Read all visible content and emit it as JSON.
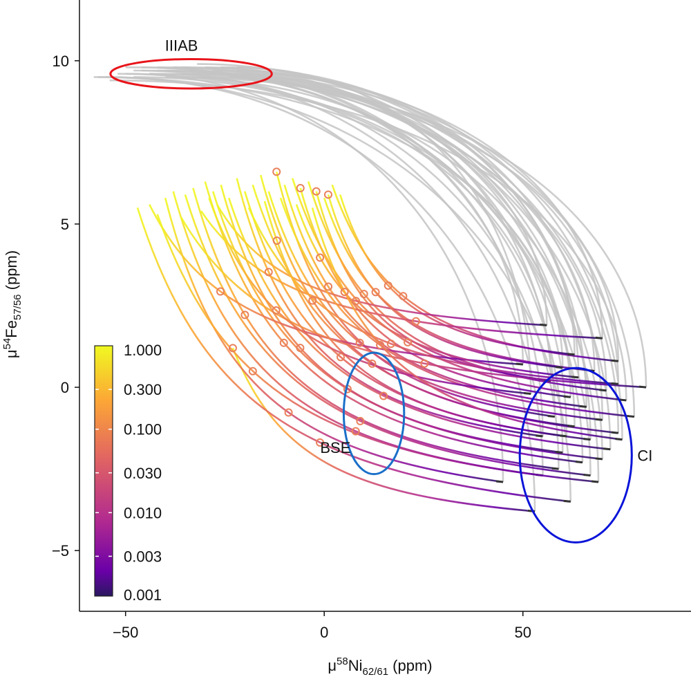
{
  "chart_data": {
    "type": "line",
    "xlabel": {
      "prefix": "μ",
      "sup": "58",
      "main": "Ni",
      "sub": "62/61",
      "suffix": " (ppm)"
    },
    "ylabel": {
      "prefix": "μ",
      "sup": "54",
      "main": "Fe",
      "sub": "57/56",
      "suffix": " (ppm)"
    },
    "xlim": [
      -61.6,
      92.3
    ],
    "ylim": [
      -6.86,
      11.86
    ],
    "xticks": [
      {
        "v": -50,
        "label": "−50"
      },
      {
        "v": 0,
        "label": "0"
      },
      {
        "v": 50,
        "label": "50"
      }
    ],
    "yticks": [
      {
        "v": -5,
        "label": "−5"
      },
      {
        "v": 0,
        "label": "0"
      },
      {
        "v": 5,
        "label": "5"
      },
      {
        "v": 10,
        "label": "10"
      }
    ],
    "grid": false,
    "grey_curve_color": "#c4c4c4",
    "colorbar": {
      "scale": "log",
      "range": [
        0.001,
        1
      ],
      "ticks": [
        {
          "v": 1,
          "label": "1.000"
        },
        {
          "v": 0.3,
          "label": "0.300"
        },
        {
          "v": 0.1,
          "label": "0.100"
        },
        {
          "v": 0.03,
          "label": "0.030"
        },
        {
          "v": 0.01,
          "label": "0.010"
        },
        {
          "v": 0.003,
          "label": "0.003"
        },
        {
          "v": 0.001,
          "label": "0.001"
        }
      ],
      "colormap": "plasma",
      "placement": "bottom-left"
    },
    "ellipses": [
      {
        "label": "IIIAB",
        "cx": -33.5,
        "cy": 9.6,
        "rx": 20.3,
        "ry": 0.45,
        "color": "#e8141a"
      },
      {
        "label": "BSE",
        "cx": 12.5,
        "cy": -0.8,
        "rx": 7.6,
        "ry": 1.86,
        "color": "#1a6fc9"
      },
      {
        "label": "CI",
        "cx": 63.3,
        "cy": -2.08,
        "rx": 14.1,
        "ry": 2.67,
        "color": "#0a14d8"
      }
    ],
    "curves_columns": [
      "end_x",
      "end_y",
      "colored_start_x",
      "colored_start_y",
      "grey_start_x",
      "grey_start_y",
      "marker_x"
    ],
    "curves": [
      [
        53,
        -3.8,
        -23,
        1.2,
        -55,
        9.5,
        -23
      ],
      [
        62,
        -3.5,
        -47,
        5.5,
        -57,
        9.5,
        -1
      ],
      [
        45,
        -2.9,
        -40,
        5.8,
        -50,
        9.6,
        -9
      ],
      [
        55,
        -2.7,
        -38,
        6.0,
        -48,
        9.7,
        8
      ],
      [
        67,
        -2.7,
        -35,
        5.9,
        -46,
        9.8,
        9
      ],
      [
        59,
        -2.5,
        -33,
        6.1,
        -44,
        9.6,
        -20
      ],
      [
        65,
        -2.3,
        -30,
        6.3,
        -42,
        9.7,
        -10
      ],
      [
        70,
        -2.2,
        -28,
        6.0,
        -40,
        9.5,
        6
      ],
      [
        60,
        -2.0,
        -26,
        6.2,
        -38,
        9.8,
        -6
      ],
      [
        72,
        -1.9,
        -24,
        5.8,
        -36,
        9.6,
        15
      ],
      [
        55,
        -1.5,
        -22,
        6.4,
        -34,
        9.7,
        -14
      ],
      [
        67,
        -1.6,
        -20,
        6.0,
        -32,
        9.9,
        4
      ],
      [
        74,
        -1.4,
        -18,
        6.2,
        -30,
        9.6,
        12
      ],
      [
        63,
        -1.2,
        -16,
        6.5,
        -28,
        9.7,
        -3
      ],
      [
        70,
        -1.0,
        -14,
        6.0,
        -26,
        9.8,
        9
      ],
      [
        58,
        -0.9,
        -12,
        6.6,
        -24,
        9.6,
        -17
      ],
      [
        66,
        -0.6,
        -10,
        6.2,
        -22,
        9.7,
        1
      ],
      [
        76,
        -0.4,
        -8,
        6.4,
        -54,
        9.4,
        21
      ],
      [
        62,
        -0.3,
        -6,
        6.1,
        -52,
        9.6,
        -8
      ],
      [
        71,
        -0.1,
        -4,
        6.3,
        -50,
        9.8,
        10
      ],
      [
        57,
        0.2,
        -2,
        6.0,
        -48,
        9.5,
        -4
      ],
      [
        68,
        0.5,
        0,
        5.8,
        -46,
        9.7,
        13
      ],
      [
        74,
        0.8,
        2,
        6.2,
        -44,
        9.6,
        20
      ],
      [
        63,
        1.0,
        4,
        5.9,
        -42,
        9.8,
        16
      ],
      [
        50,
        0.7,
        -44,
        5.6,
        -40,
        9.7,
        -26
      ],
      [
        81,
        0.0,
        -36,
        5.2,
        -38,
        9.5,
        25
      ],
      [
        70,
        1.5,
        -31,
        5.4,
        -36,
        9.8,
        23
      ],
      [
        56,
        1.9,
        -27,
        5.6,
        -34,
        9.6,
        8
      ],
      [
        74,
        0.1,
        -19,
        5.5,
        -32,
        9.5,
        17
      ],
      [
        61,
        -1.5,
        -15,
        5.7,
        -30,
        9.8,
        -12
      ],
      [
        78,
        -0.9,
        -11,
        5.8,
        -28,
        9.6,
        14
      ],
      [
        64,
        0.3,
        -7,
        5.6,
        -26,
        9.7,
        -1
      ],
      [
        69,
        -2.9,
        -42,
        5.3,
        -24,
        9.5,
        -18
      ],
      [
        52,
        -0.2,
        -29,
        5.8,
        -22,
        9.8,
        -12
      ],
      [
        75,
        -1.6,
        -3,
        5.5,
        -20,
        9.6,
        5
      ],
      [
        60,
        0.6,
        1,
        5.9,
        -58,
        9.5,
        0
      ]
    ]
  }
}
